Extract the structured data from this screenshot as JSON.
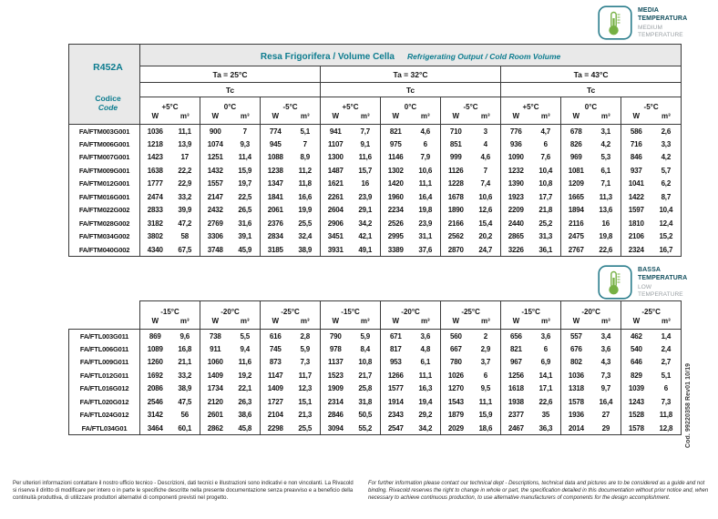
{
  "side_note": "Cod. 99220358 Rev01 10/19",
  "badge_medium": {
    "title_line1": "MEDIA",
    "title_line2": "TEMPERATURA",
    "subtitle_line1": "MEDIUM",
    "subtitle_line2": "TEMPERATURE"
  },
  "badge_low": {
    "title_line1": "BASSA",
    "title_line2": "TEMPERATURA",
    "subtitle_line1": "LOW",
    "subtitle_line2": "TEMPERATURE"
  },
  "medium_table": {
    "refrigerant": "R452A",
    "code_label": "Codice",
    "code_label_en": "Code",
    "title": "Resa Frigorifera / Volume Cella",
    "title_en": "Refrigerating Output / Cold Room Volume",
    "ta_groups": [
      "Ta = 25°C",
      "Ta = 32°C",
      "Ta = 43°C"
    ],
    "tc_label": "Tc",
    "unit_w": "W",
    "unit_m3": "m³",
    "temp_cols": [
      "+5°C",
      "0°C",
      "-5°C",
      "+5°C",
      "0°C",
      "-5°C",
      "+5°C",
      "0°C",
      "-5°C"
    ],
    "rows": [
      {
        "code": "FA/FTM003G001",
        "values": [
          "1036",
          "11,1",
          "900",
          "7",
          "774",
          "5,1",
          "941",
          "7,7",
          "821",
          "4,6",
          "710",
          "3",
          "776",
          "4,7",
          "678",
          "3,1",
          "586",
          "2,6"
        ]
      },
      {
        "code": "FA/FTM006G001",
        "values": [
          "1218",
          "13,9",
          "1074",
          "9,3",
          "945",
          "7",
          "1107",
          "9,1",
          "975",
          "6",
          "851",
          "4",
          "936",
          "6",
          "826",
          "4,2",
          "716",
          "3,3"
        ]
      },
      {
        "code": "FA/FTM007G001",
        "values": [
          "1423",
          "17",
          "1251",
          "11,4",
          "1088",
          "8,9",
          "1300",
          "11,6",
          "1146",
          "7,9",
          "999",
          "4,6",
          "1090",
          "7,6",
          "969",
          "5,3",
          "846",
          "4,2"
        ]
      },
      {
        "code": "FA/FTM009G001",
        "values": [
          "1638",
          "22,2",
          "1432",
          "15,9",
          "1238",
          "11,2",
          "1487",
          "15,7",
          "1302",
          "10,6",
          "1126",
          "7",
          "1232",
          "10,4",
          "1081",
          "6,1",
          "937",
          "5,7"
        ]
      },
      {
        "code": "FA/FTM012G001",
        "values": [
          "1777",
          "22,9",
          "1557",
          "19,7",
          "1347",
          "11,8",
          "1621",
          "16",
          "1420",
          "11,1",
          "1228",
          "7,4",
          "1390",
          "10,8",
          "1209",
          "7,1",
          "1041",
          "6,2"
        ]
      },
      {
        "code": "FA/FTM016G001",
        "values": [
          "2474",
          "33,2",
          "2147",
          "22,5",
          "1841",
          "16,6",
          "2261",
          "23,9",
          "1960",
          "16,4",
          "1678",
          "10,6",
          "1923",
          "17,7",
          "1665",
          "11,3",
          "1422",
          "8,7"
        ]
      },
      {
        "code": "FA/FTM022G002",
        "values": [
          "2833",
          "39,9",
          "2432",
          "26,5",
          "2061",
          "19,9",
          "2604",
          "29,1",
          "2234",
          "19,8",
          "1890",
          "12,6",
          "2209",
          "21,8",
          "1894",
          "13,6",
          "1597",
          "10,4"
        ]
      },
      {
        "code": "FA/FTM028G002",
        "values": [
          "3182",
          "47,2",
          "2769",
          "31,6",
          "2376",
          "25,5",
          "2906",
          "34,2",
          "2526",
          "23,9",
          "2166",
          "15,4",
          "2440",
          "25,2",
          "2116",
          "16",
          "1810",
          "12,4"
        ]
      },
      {
        "code": "FA/FTM034G002",
        "values": [
          "3802",
          "58",
          "3306",
          "39,1",
          "2834",
          "32,4",
          "3451",
          "42,1",
          "2995",
          "31,1",
          "2562",
          "20,2",
          "2865",
          "31,3",
          "2475",
          "19,8",
          "2106",
          "15,2"
        ]
      },
      {
        "code": "FA/FTM040G002",
        "values": [
          "4340",
          "67,5",
          "3748",
          "45,9",
          "3185",
          "38,9",
          "3931",
          "49,1",
          "3389",
          "37,6",
          "2870",
          "24,7",
          "3226",
          "36,1",
          "2767",
          "22,6",
          "2324",
          "16,7"
        ]
      }
    ]
  },
  "low_table": {
    "unit_w": "W",
    "unit_m3": "m³",
    "temp_cols": [
      "-15°C",
      "-20°C",
      "-25°C",
      "-15°C",
      "-20°C",
      "-25°C",
      "-15°C",
      "-20°C",
      "-25°C"
    ],
    "rows": [
      {
        "code": "FA/FTL003G011",
        "values": [
          "869",
          "9,6",
          "738",
          "5,5",
          "616",
          "2,8",
          "790",
          "5,9",
          "671",
          "3,6",
          "560",
          "2",
          "656",
          "3,6",
          "557",
          "3,4",
          "462",
          "1,4"
        ]
      },
      {
        "code": "FA/FTL006G011",
        "values": [
          "1089",
          "16,8",
          "911",
          "9,4",
          "745",
          "5,9",
          "978",
          "8,4",
          "817",
          "4,8",
          "667",
          "2,9",
          "821",
          "6",
          "676",
          "3,6",
          "540",
          "2,4"
        ]
      },
      {
        "code": "FA/FTL009G011",
        "values": [
          "1260",
          "21,1",
          "1060",
          "11,6",
          "873",
          "7,3",
          "1137",
          "10,8",
          "953",
          "6,1",
          "780",
          "3,7",
          "967",
          "6,9",
          "802",
          "4,3",
          "646",
          "2,7"
        ]
      },
      {
        "code": "FA/FTL012G011",
        "values": [
          "1692",
          "33,2",
          "1409",
          "19,2",
          "1147",
          "11,7",
          "1523",
          "21,7",
          "1266",
          "11,1",
          "1026",
          "6",
          "1256",
          "14,1",
          "1036",
          "7,3",
          "829",
          "5,1"
        ]
      },
      {
        "code": "FA/FTL016G012",
        "values": [
          "2086",
          "38,9",
          "1734",
          "22,1",
          "1409",
          "12,3",
          "1909",
          "25,8",
          "1577",
          "16,3",
          "1270",
          "9,5",
          "1618",
          "17,1",
          "1318",
          "9,7",
          "1039",
          "6"
        ]
      },
      {
        "code": "FA/FTL020G012",
        "values": [
          "2546",
          "47,5",
          "2120",
          "26,3",
          "1727",
          "15,1",
          "2314",
          "31,8",
          "1914",
          "19,4",
          "1543",
          "11,1",
          "1938",
          "22,6",
          "1578",
          "16,4",
          "1243",
          "7,3"
        ]
      },
      {
        "code": "FA/FTL024G012",
        "values": [
          "3142",
          "56",
          "2601",
          "38,6",
          "2104",
          "21,3",
          "2846",
          "50,5",
          "2343",
          "29,2",
          "1879",
          "15,9",
          "2377",
          "35",
          "1936",
          "27",
          "1528",
          "11,8"
        ]
      },
      {
        "code": "FA/FTL034G01",
        "values": [
          "3464",
          "60,1",
          "2862",
          "45,8",
          "2298",
          "25,5",
          "3094",
          "55,2",
          "2547",
          "34,2",
          "2029",
          "18,6",
          "2467",
          "36,3",
          "2014",
          "29",
          "1578",
          "12,8"
        ]
      }
    ]
  },
  "footer": {
    "text_it": "Per ulteriori informazioni contattare il nostro ufficio tecnico - Descrizioni, dati tecnici e illustrazioni sono indicativi e non vincolanti. La Rivacold si riserva il diritto di modificare per intero o in parte le specifiche descritte nella presente documentazione senza preavviso e a beneficio della continuità produttiva, di utilizzare produttori alternativi di componenti previsti nel progetto.",
    "text_en": "For further information please contact our technical dept - Descriptions, technical data and pictures are to be considered as a guide and not binding. Rivacold reserves the right to change in whole or part, the specification detailed in this documentation without prior notice and, when necessary to achieve continuous production, to use alternative manufacturers of components for the design accomplishment."
  }
}
